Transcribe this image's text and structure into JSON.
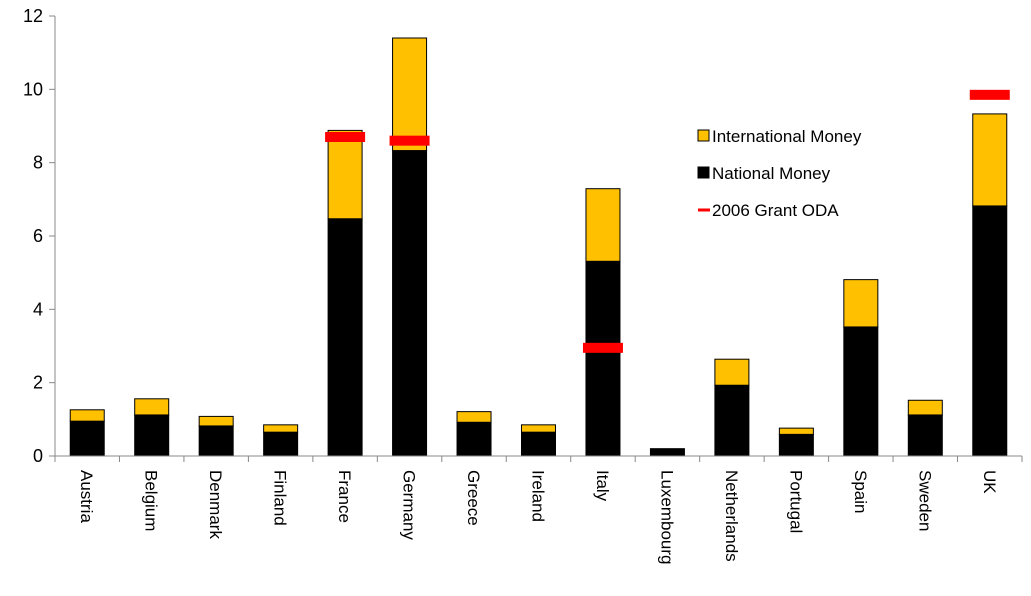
{
  "chart_data": {
    "type": "bar",
    "stacked": true,
    "categories": [
      "Austria",
      "Belgium",
      "Denmark",
      "Finland",
      "France",
      "Germany",
      "Greece",
      "Ireland",
      "Italy",
      "Luxembourg",
      "Netherlands",
      "Portugal",
      "Spain",
      "Sweden",
      "UK"
    ],
    "series": [
      {
        "name": "National Money",
        "color": "#000000",
        "values": [
          0.95,
          1.12,
          0.82,
          0.65,
          6.47,
          8.33,
          0.92,
          0.65,
          5.31,
          0.2,
          1.93,
          0.59,
          3.52,
          1.12,
          6.82
        ]
      },
      {
        "name": "International Money",
        "color": "#FFC000",
        "values": [
          0.31,
          0.44,
          0.26,
          0.2,
          2.41,
          3.07,
          0.29,
          0.2,
          1.98,
          0.0,
          0.71,
          0.17,
          1.29,
          0.4,
          2.51
        ]
      }
    ],
    "markers": {
      "name": "2006 Grant ODA",
      "color": "#FF0000",
      "points": [
        {
          "category": "France",
          "value": 8.7
        },
        {
          "category": "Germany",
          "value": 8.6
        },
        {
          "category": "Italy",
          "value": 2.95
        },
        {
          "category": "UK",
          "value": 9.85
        }
      ]
    },
    "ylim": [
      0,
      12
    ],
    "yticks": [
      "0",
      "2",
      "4",
      "6",
      "8",
      "10",
      "12"
    ],
    "legend": {
      "position": "top-right",
      "items": [
        {
          "label": "International Money",
          "color": "#FFC000",
          "kind": "box"
        },
        {
          "label": "National Money",
          "color": "#000000",
          "kind": "box"
        },
        {
          "label": "2006 Grant ODA",
          "color": "#FF0000",
          "kind": "line"
        }
      ]
    },
    "grid": false
  }
}
